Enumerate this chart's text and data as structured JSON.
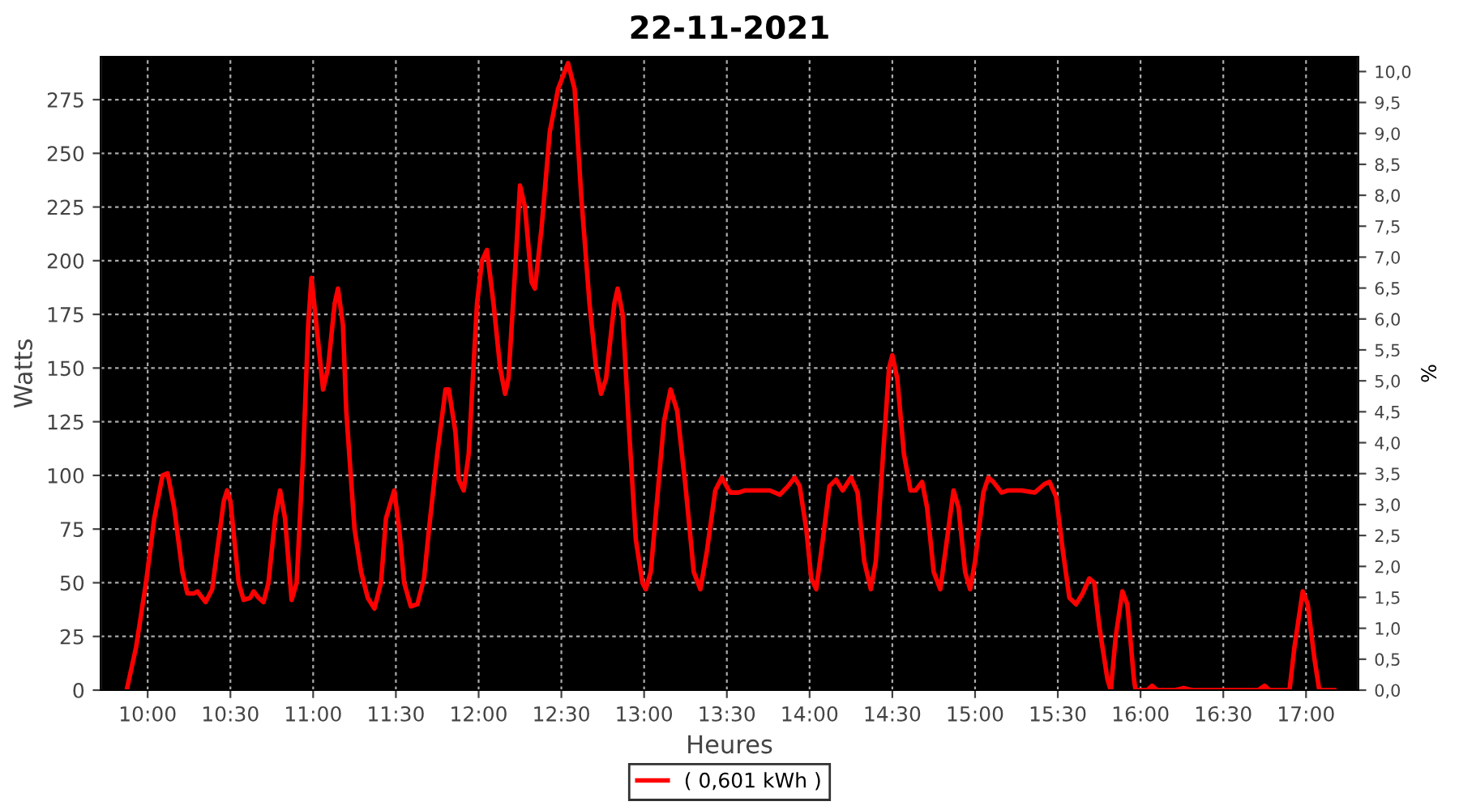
{
  "chart_data": {
    "type": "line",
    "title": "22-11-2021",
    "xlabel": "Heures",
    "ylabel": "Watts",
    "y2label": "%",
    "xlim": [
      9.716,
      17.316
    ],
    "ylim": [
      0,
      295
    ],
    "y2lim": [
      0,
      10.24
    ],
    "xticks": [
      {
        "value": 10,
        "label": "10:00"
      },
      {
        "value": 10.5,
        "label": "10:30"
      },
      {
        "value": 11,
        "label": "11:00"
      },
      {
        "value": 11.5,
        "label": "11:30"
      },
      {
        "value": 12,
        "label": "12:00"
      },
      {
        "value": 12.5,
        "label": "12:30"
      },
      {
        "value": 13,
        "label": "13:00"
      },
      {
        "value": 13.5,
        "label": "13:30"
      },
      {
        "value": 14,
        "label": "14:00"
      },
      {
        "value": 14.5,
        "label": "14:30"
      },
      {
        "value": 15,
        "label": "15:00"
      },
      {
        "value": 15.5,
        "label": "15:30"
      },
      {
        "value": 16,
        "label": "16:00"
      },
      {
        "value": 16.5,
        "label": "16:30"
      },
      {
        "value": 17,
        "label": "17:00"
      }
    ],
    "yticks": [
      0,
      25,
      50,
      75,
      100,
      125,
      150,
      175,
      200,
      225,
      250,
      275
    ],
    "y2ticks": [
      {
        "value": 0,
        "label": "0,0"
      },
      {
        "value": 0.5,
        "label": "0,5"
      },
      {
        "value": 1,
        "label": "1,0"
      },
      {
        "value": 1.5,
        "label": "1,5"
      },
      {
        "value": 2,
        "label": "2,0"
      },
      {
        "value": 2.5,
        "label": "2,5"
      },
      {
        "value": 3,
        "label": "3,0"
      },
      {
        "value": 3.5,
        "label": "3,5"
      },
      {
        "value": 4,
        "label": "4,0"
      },
      {
        "value": 4.5,
        "label": "4,5"
      },
      {
        "value": 5,
        "label": "5,0"
      },
      {
        "value": 5.5,
        "label": "5,5"
      },
      {
        "value": 6,
        "label": "6,0"
      },
      {
        "value": 6.5,
        "label": "6,5"
      },
      {
        "value": 7,
        "label": "7,0"
      },
      {
        "value": 7.5,
        "label": "7,5"
      },
      {
        "value": 8,
        "label": "8,0"
      },
      {
        "value": 8.5,
        "label": "8,5"
      },
      {
        "value": 9,
        "label": "9,0"
      },
      {
        "value": 9.5,
        "label": "9,5"
      },
      {
        "value": 10,
        "label": "10,0"
      }
    ],
    "grid": true,
    "legend": "bottom",
    "marker": "none",
    "line_style": "solid",
    "series": [
      {
        "name": "( 0,601 kWh )",
        "color": "#ff0000",
        "x": [
          9.873,
          9.93,
          9.99,
          10.04,
          10.09,
          10.12,
          10.16,
          10.21,
          10.24,
          10.28,
          10.3,
          10.35,
          10.39,
          10.42,
          10.46,
          10.48,
          10.5,
          10.55,
          10.58,
          10.62,
          10.64,
          10.67,
          10.7,
          10.73,
          10.77,
          10.8,
          10.83,
          10.87,
          10.9,
          10.94,
          10.97,
          10.99,
          11.02,
          11.06,
          11.09,
          11.13,
          11.15,
          11.18,
          11.2,
          11.25,
          11.29,
          11.33,
          11.37,
          11.41,
          11.44,
          11.49,
          11.52,
          11.55,
          11.59,
          11.63,
          11.67,
          11.7,
          11.75,
          11.8,
          11.82,
          11.86,
          11.88,
          11.91,
          11.94,
          11.99,
          12.02,
          12.05,
          12.09,
          12.13,
          12.16,
          12.18,
          12.22,
          12.25,
          12.28,
          12.32,
          12.34,
          12.38,
          12.43,
          12.48,
          12.54,
          12.58,
          12.62,
          12.67,
          12.71,
          12.74,
          12.77,
          12.82,
          12.84,
          12.87,
          12.91,
          12.95,
          12.99,
          13.01,
          13.04,
          13.08,
          13.12,
          13.16,
          13.2,
          13.25,
          13.3,
          13.34,
          13.38,
          13.43,
          13.47,
          13.52,
          13.57,
          13.61,
          13.76,
          13.82,
          13.87,
          13.91,
          13.94,
          13.98,
          14.01,
          14.04,
          14.08,
          14.12,
          14.16,
          14.2,
          14.25,
          14.29,
          14.33,
          14.37,
          14.4,
          14.44,
          14.48,
          14.5,
          14.53,
          14.57,
          14.61,
          14.64,
          14.68,
          14.71,
          14.75,
          14.79,
          14.83,
          14.87,
          14.9,
          14.94,
          14.97,
          15.0,
          15.05,
          15.08,
          15.11,
          15.16,
          15.2,
          15.28,
          15.36,
          15.42,
          15.45,
          15.49,
          15.53,
          15.57,
          15.61,
          15.65,
          15.69,
          15.72,
          15.75,
          15.8,
          15.82,
          15.85,
          15.89,
          15.92,
          15.96,
          15.97,
          16.04,
          16.07,
          16.1,
          16.21,
          16.26,
          16.31,
          16.71,
          16.75,
          16.78,
          16.9,
          16.93,
          16.98,
          17.01,
          17.05,
          17.08,
          17.17
        ],
        "values": [
          0,
          20,
          50,
          80,
          100,
          101,
          85,
          55,
          45,
          45,
          46,
          41,
          47,
          65,
          88,
          93,
          88,
          50,
          42,
          43,
          46,
          43,
          41,
          50,
          80,
          93,
          80,
          42,
          50,
          110,
          170,
          192,
          170,
          140,
          150,
          180,
          187,
          170,
          130,
          75,
          55,
          43,
          38,
          50,
          80,
          93,
          75,
          50,
          39,
          40,
          52,
          75,
          110,
          140,
          140,
          120,
          98,
          93,
          110,
          180,
          200,
          205,
          180,
          150,
          138,
          145,
          195,
          235,
          225,
          190,
          187,
          215,
          260,
          280,
          292,
          280,
          230,
          180,
          150,
          138,
          145,
          180,
          187,
          175,
          120,
          70,
          50,
          47,
          55,
          90,
          125,
          140,
          130,
          95,
          55,
          47,
          65,
          93,
          99,
          92,
          92,
          93,
          93,
          91,
          95,
          99,
          95,
          75,
          52,
          47,
          70,
          95,
          98,
          93,
          99,
          92,
          60,
          47,
          60,
          105,
          150,
          156,
          145,
          110,
          93,
          93,
          97,
          85,
          55,
          47,
          70,
          93,
          85,
          55,
          47,
          60,
          92,
          99,
          97,
          92,
          93,
          93,
          92,
          96,
          97,
          90,
          65,
          43,
          40,
          45,
          52,
          50,
          30,
          5,
          0,
          25,
          46,
          40,
          5,
          0,
          0,
          2,
          0,
          0,
          1,
          0,
          0,
          2,
          0,
          0,
          20,
          46,
          40,
          15,
          0,
          0
        ]
      }
    ]
  }
}
